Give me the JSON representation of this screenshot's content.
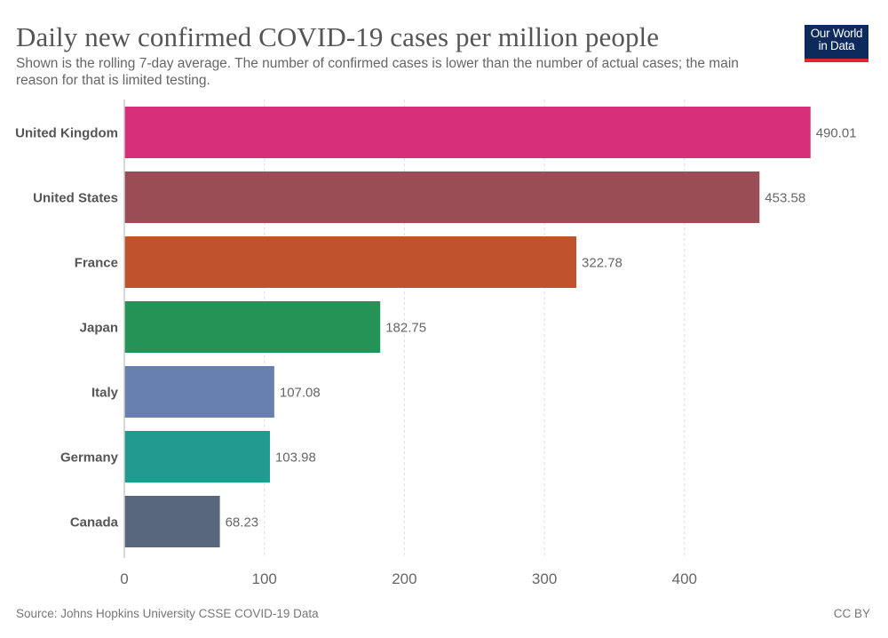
{
  "header": {
    "title": "Daily new confirmed COVID-19 cases per million people",
    "subtitle": "Shown is the rolling 7-day average. The number of confirmed cases is lower than the number of actual cases; the main reason for that is limited testing.",
    "logo_line1": "Our World",
    "logo_line2": "in Data"
  },
  "footer": {
    "source": "Source: Johns Hopkins University CSSE COVID-19 Data",
    "license": "CC BY"
  },
  "chart_data": {
    "type": "bar",
    "orientation": "horizontal",
    "title": "Daily new confirmed COVID-19 cases per million people",
    "subtitle": "Shown is the rolling 7-day average. The number of confirmed cases is lower than the number of actual cases; the main reason for that is limited testing.",
    "xlabel": "",
    "ylabel": "",
    "categories": [
      "United Kingdom",
      "United States",
      "France",
      "Japan",
      "Italy",
      "Germany",
      "Canada"
    ],
    "values": [
      490.01,
      453.58,
      322.78,
      182.75,
      107.08,
      103.98,
      68.23
    ],
    "value_labels": [
      "490.01",
      "453.58",
      "322.78",
      "182.75",
      "107.08",
      "103.98",
      "68.23"
    ],
    "colors": [
      "#d62e79",
      "#994e56",
      "#bf532b",
      "#269356",
      "#6780ad",
      "#239a90",
      "#58677d"
    ],
    "xlim": [
      0,
      490.01
    ],
    "xticks": [
      0,
      100,
      200,
      300,
      400
    ],
    "xtick_labels": [
      "0",
      "100",
      "200",
      "300",
      "400"
    ],
    "grid": "vertical dashed",
    "legend": "none",
    "source": "Source: Johns Hopkins University CSSE COVID-19 Data"
  }
}
